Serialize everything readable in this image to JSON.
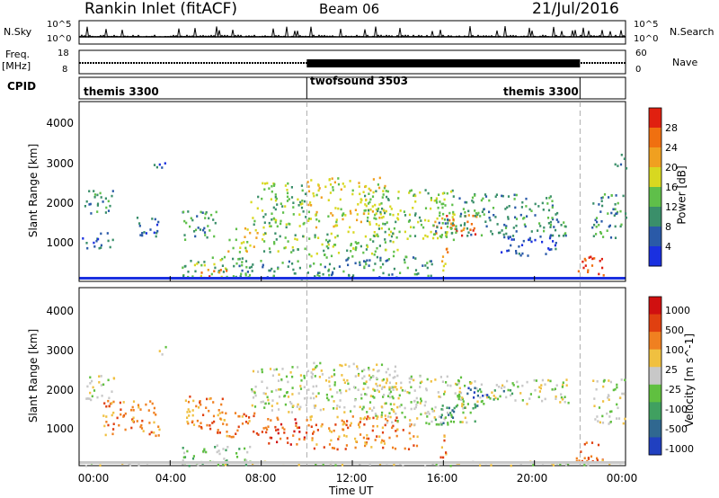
{
  "header": {
    "station": "Rankin Inlet (fitACF)",
    "beam": "Beam 06",
    "date": "21/Jul/2016"
  },
  "top_panels": {
    "nsky_label": "N.Sky",
    "nsky_ticks": [
      "10^5",
      "10^0"
    ],
    "nsearch_label": "N.Search",
    "nsearch_ticks": [
      "10^5",
      "10^0"
    ],
    "freq_label": "Freq.",
    "freq_unit": "[MHz]",
    "freq_ticks": [
      "18",
      "8"
    ],
    "nave_label": "Nave",
    "nave_ticks": [
      "60",
      "0"
    ],
    "cpid_label": "CPID",
    "cpid_segments": [
      {
        "label": "themis 3300",
        "start_h": 0.0,
        "end_h": 10.0
      },
      {
        "label": "twofsound 3503",
        "start_h": 10.0,
        "end_h": 22.0
      },
      {
        "label": "themis 3300",
        "start_h": 22.0,
        "end_h": 24.0
      }
    ]
  },
  "chart_data": [
    {
      "type": "heatmap",
      "title": "Power",
      "xlabel": "Time UT",
      "ylabel": "Slant Range [km]",
      "xlim": [
        0,
        24
      ],
      "ylim": [
        180,
        4500
      ],
      "yticks": [
        "1000",
        "2000",
        "3000",
        "4000"
      ],
      "colorbar_label": "Power [dB]",
      "colorbar_ticks": [
        "4",
        "8",
        "12",
        "16",
        "20",
        "24",
        "28"
      ],
      "colorbar_colors": [
        "#1a30e0",
        "#2a5aa8",
        "#3a8f6a",
        "#5fbf4a",
        "#d8d820",
        "#f0a020",
        "#f07010",
        "#e02010"
      ],
      "echo_regions": [
        {
          "t0": 0.1,
          "t1": 1.5,
          "r0": 1800,
          "r1": 2400,
          "level": 2
        },
        {
          "t0": 0.1,
          "t1": 1.5,
          "r0": 1000,
          "r1": 1400,
          "level": 1
        },
        {
          "t0": 2.5,
          "t1": 3.5,
          "r0": 1200,
          "r1": 1800,
          "level": 1
        },
        {
          "t0": 3.2,
          "t1": 3.8,
          "r0": 2800,
          "r1": 3100,
          "level": 1
        },
        {
          "t0": 4.5,
          "t1": 6.0,
          "r0": 1100,
          "r1": 1900,
          "level": 2
        },
        {
          "t0": 4.5,
          "t1": 7.8,
          "r0": 300,
          "r1": 800,
          "level": 3
        },
        {
          "t0": 5.0,
          "t1": 6.5,
          "r0": 250,
          "r1": 500,
          "level": 6
        },
        {
          "t0": 6.5,
          "t1": 7.8,
          "r0": 900,
          "r1": 1500,
          "level": 4
        },
        {
          "t0": 7.5,
          "t1": 10.0,
          "r0": 1500,
          "r1": 2600,
          "level": 3
        },
        {
          "t0": 8.0,
          "t1": 10.0,
          "r0": 900,
          "r1": 1400,
          "level": 3
        },
        {
          "t0": 7.0,
          "t1": 10.5,
          "r0": 250,
          "r1": 700,
          "level": 2
        },
        {
          "t0": 10.0,
          "t1": 13.5,
          "r0": 1500,
          "r1": 2700,
          "level": 4
        },
        {
          "t0": 10.0,
          "t1": 14.0,
          "r0": 800,
          "r1": 1400,
          "level": 3
        },
        {
          "t0": 10.5,
          "t1": 15.5,
          "r0": 300,
          "r1": 800,
          "level": 2
        },
        {
          "t0": 12.5,
          "t1": 16.5,
          "r0": 1200,
          "r1": 2400,
          "level": 3
        },
        {
          "t0": 15.5,
          "t1": 17.5,
          "r0": 1300,
          "r1": 1800,
          "level": 6
        },
        {
          "t0": 15.5,
          "t1": 21.5,
          "r0": 1300,
          "r1": 1700,
          "level": 2
        },
        {
          "t0": 16.5,
          "t1": 21.0,
          "r0": 1700,
          "r1": 2300,
          "level": 2
        },
        {
          "t0": 18.5,
          "t1": 21.0,
          "r0": 800,
          "r1": 1300,
          "level": 1
        },
        {
          "t0": 15.8,
          "t1": 16.2,
          "r0": 400,
          "r1": 1100,
          "level": 5
        },
        {
          "t0": 21.8,
          "t1": 23.0,
          "r0": 250,
          "r1": 800,
          "level": 7
        },
        {
          "t0": 22.5,
          "t1": 24.0,
          "r0": 1200,
          "r1": 2300,
          "level": 2
        },
        {
          "t0": 23.5,
          "t1": 24.0,
          "r0": 2900,
          "r1": 3300,
          "level": 1
        }
      ]
    },
    {
      "type": "heatmap",
      "title": "Velocity",
      "xlabel": "Time UT",
      "ylabel": "Slant Range [km]",
      "xlim": [
        0,
        24
      ],
      "ylim": [
        180,
        4500
      ],
      "yticks": [
        "1000",
        "2000",
        "3000",
        "4000"
      ],
      "colorbar_label": "Velocity [m s^-1]",
      "colorbar_ticks": [
        "1000",
        "500",
        "100",
        "25",
        "-25",
        "-100",
        "-500",
        "-1000"
      ],
      "colorbar_colors": [
        "#2040c0",
        "#306890",
        "#40a060",
        "#60c040",
        "#c8c8c8",
        "#f0c040",
        "#f08020",
        "#e04010",
        "#d01010"
      ],
      "echo_regions": [
        {
          "t0": 0.1,
          "t1": 1.5,
          "r0": 1800,
          "r1": 2400,
          "level": 4
        },
        {
          "t0": 1.0,
          "t1": 3.5,
          "r0": 900,
          "r1": 1800,
          "level": 6
        },
        {
          "t0": 3.2,
          "t1": 3.8,
          "r0": 2900,
          "r1": 3100,
          "level": 4
        },
        {
          "t0": 4.5,
          "t1": 6.5,
          "r0": 1100,
          "r1": 1900,
          "level": 6
        },
        {
          "t0": 4.5,
          "t1": 7.5,
          "r0": 200,
          "r1": 700,
          "level": 3
        },
        {
          "t0": 6.0,
          "t1": 8.0,
          "r0": 900,
          "r1": 1500,
          "level": 6
        },
        {
          "t0": 7.5,
          "t1": 10.0,
          "r0": 1500,
          "r1": 2600,
          "level": 4
        },
        {
          "t0": 8.0,
          "t1": 10.0,
          "r0": 700,
          "r1": 1400,
          "level": 7
        },
        {
          "t0": 10.0,
          "t1": 14.0,
          "r0": 1500,
          "r1": 2700,
          "level": 4
        },
        {
          "t0": 10.0,
          "t1": 15.0,
          "r0": 600,
          "r1": 1400,
          "level": 6
        },
        {
          "t0": 12.5,
          "t1": 17.0,
          "r0": 1200,
          "r1": 2400,
          "level": 4
        },
        {
          "t0": 15.5,
          "t1": 17.5,
          "r0": 1200,
          "r1": 1700,
          "level": 2
        },
        {
          "t0": 16.5,
          "t1": 21.5,
          "r0": 1700,
          "r1": 2300,
          "level": 4
        },
        {
          "t0": 17.0,
          "t1": 19.0,
          "r0": 1800,
          "r1": 2100,
          "level": 1
        },
        {
          "t0": 15.8,
          "t1": 16.2,
          "r0": 400,
          "r1": 1100,
          "level": 6
        },
        {
          "t0": 21.8,
          "t1": 23.0,
          "r0": 250,
          "r1": 800,
          "level": 6
        },
        {
          "t0": 22.5,
          "t1": 24.0,
          "r0": 1200,
          "r1": 2300,
          "level": 4
        },
        {
          "t0": 0.1,
          "t1": 24.0,
          "r0": 200,
          "r1": 300,
          "level": 4
        }
      ]
    }
  ],
  "xaxis": {
    "label": "Time UT",
    "ticks": [
      "00:00",
      "04:00",
      "08:00",
      "12:00",
      "16:00",
      "20:00",
      "00:00"
    ]
  }
}
